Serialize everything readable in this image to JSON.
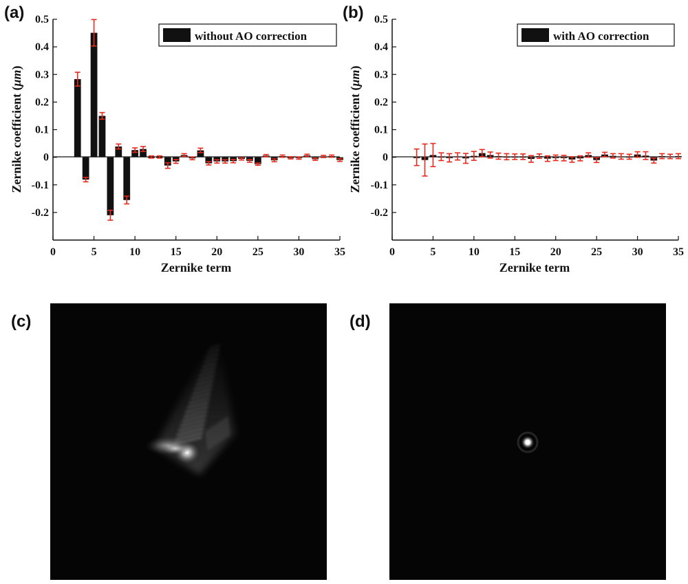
{
  "panels": {
    "a": "(a)",
    "b": "(b)",
    "c": "(c)",
    "d": "(d)"
  },
  "colors": {
    "bar": "#111111",
    "errorbar": "#e8291c",
    "image_bg": "#050505"
  },
  "chart_data": [
    {
      "type": "bar",
      "panel": "(a)",
      "xlabel": "Zernike term",
      "ylabel": "Zernike coefficient (μm)",
      "ylabel_prefix": "Zernike coefficient (",
      "ylabel_unit": "μm",
      "ylabel_suffix": ")",
      "xlim": [
        0,
        35
      ],
      "ylim": [
        -0.3,
        0.5
      ],
      "xticks": [
        0,
        5,
        10,
        15,
        20,
        25,
        30,
        35
      ],
      "yticks": [
        -0.2,
        -0.1,
        0,
        0.1,
        0.2,
        0.3,
        0.4,
        0.5
      ],
      "ytick_labels": [
        "-0.2",
        "-0.1",
        "0",
        "0.1",
        "0.2",
        "0.3",
        "0.4",
        "0.5"
      ],
      "legend": "without AO correction",
      "legend_position": "top-right",
      "grid": false,
      "x": [
        3,
        4,
        5,
        6,
        7,
        8,
        9,
        10,
        11,
        12,
        13,
        14,
        15,
        16,
        17,
        18,
        19,
        20,
        21,
        22,
        23,
        24,
        25,
        26,
        27,
        28,
        29,
        30,
        31,
        32,
        33,
        34,
        35
      ],
      "values": [
        0.283,
        -0.081,
        0.451,
        0.15,
        -0.21,
        0.039,
        -0.155,
        0.026,
        0.03,
        0.001,
        0.001,
        -0.03,
        -0.015,
        0.008,
        -0.004,
        0.025,
        -0.022,
        -0.015,
        -0.015,
        -0.014,
        -0.006,
        -0.013,
        -0.025,
        0.006,
        -0.011,
        0.004,
        -0.002,
        -0.003,
        0.007,
        -0.007,
        0.003,
        0.004,
        -0.01
      ],
      "errors": [
        0.025,
        0.008,
        0.048,
        0.012,
        0.018,
        0.009,
        0.014,
        0.008,
        0.009,
        0.004,
        0.004,
        0.01,
        0.007,
        0.005,
        0.005,
        0.008,
        0.006,
        0.006,
        0.006,
        0.006,
        0.004,
        0.005,
        0.004,
        0.004,
        0.005,
        0.004,
        0.004,
        0.004,
        0.004,
        0.004,
        0.004,
        0.004,
        0.005
      ]
    },
    {
      "type": "bar",
      "panel": "(b)",
      "xlabel": "Zernike term",
      "ylabel": "Zernike coefficient (μm)",
      "ylabel_prefix": "Zernike coefficient (",
      "ylabel_unit": "μm",
      "ylabel_suffix": ")",
      "xlim": [
        0,
        35
      ],
      "ylim": [
        -0.3,
        0.5
      ],
      "xticks": [
        0,
        5,
        10,
        15,
        20,
        25,
        30,
        35
      ],
      "yticks": [
        -0.2,
        -0.1,
        0,
        0.1,
        0.2,
        0.3,
        0.4,
        0.5
      ],
      "ytick_labels": [
        "-0.2",
        "-0.1",
        "0",
        "0.1",
        "0.2",
        "0.3",
        "0.4",
        "0.5"
      ],
      "legend": "with AO correction",
      "legend_position": "top-right",
      "grid": false,
      "x": [
        3,
        4,
        5,
        6,
        7,
        8,
        9,
        10,
        11,
        12,
        13,
        14,
        15,
        16,
        17,
        18,
        19,
        20,
        21,
        22,
        23,
        24,
        25,
        26,
        27,
        28,
        29,
        30,
        31,
        32,
        33,
        34,
        35
      ],
      "values": [
        0.0,
        -0.01,
        0.008,
        0.002,
        -0.002,
        0.003,
        -0.004,
        0.005,
        0.015,
        0.008,
        0.004,
        0.002,
        0.002,
        0.002,
        -0.006,
        0.004,
        -0.005,
        -0.002,
        -0.003,
        -0.008,
        -0.004,
        0.008,
        -0.01,
        0.01,
        0.005,
        0.003,
        0.002,
        0.01,
        0.006,
        -0.012,
        0.004,
        0.003,
        0.004
      ],
      "errors": [
        0.03,
        0.058,
        0.042,
        0.014,
        0.015,
        0.013,
        0.018,
        0.016,
        0.013,
        0.011,
        0.011,
        0.011,
        0.01,
        0.01,
        0.012,
        0.008,
        0.01,
        0.01,
        0.01,
        0.01,
        0.009,
        0.008,
        0.009,
        0.008,
        0.008,
        0.01,
        0.009,
        0.01,
        0.014,
        0.009,
        0.009,
        0.008,
        0.009
      ]
    },
    {
      "type": "image",
      "panel": "(c)",
      "content": "point spread function without AO correction"
    },
    {
      "type": "image",
      "panel": "(d)",
      "content": "point spread function with AO correction"
    }
  ]
}
